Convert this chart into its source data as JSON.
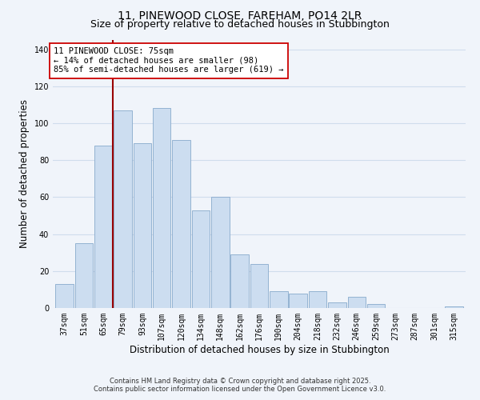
{
  "title": "11, PINEWOOD CLOSE, FAREHAM, PO14 2LR",
  "subtitle": "Size of property relative to detached houses in Stubbington",
  "xlabel": "Distribution of detached houses by size in Stubbington",
  "ylabel": "Number of detached properties",
  "categories": [
    "37sqm",
    "51sqm",
    "65sqm",
    "79sqm",
    "93sqm",
    "107sqm",
    "120sqm",
    "134sqm",
    "148sqm",
    "162sqm",
    "176sqm",
    "190sqm",
    "204sqm",
    "218sqm",
    "232sqm",
    "246sqm",
    "259sqm",
    "273sqm",
    "287sqm",
    "301sqm",
    "315sqm"
  ],
  "values": [
    13,
    35,
    88,
    107,
    89,
    108,
    91,
    53,
    60,
    29,
    24,
    9,
    8,
    9,
    3,
    6,
    2,
    0,
    0,
    0,
    1
  ],
  "bar_color": "#ccddf0",
  "bar_edge_color": "#88aacc",
  "grid_color": "#d0dded",
  "vline_color": "#990000",
  "vline_x_index": 2.5,
  "annotation_text": "11 PINEWOOD CLOSE: 75sqm\n← 14% of detached houses are smaller (98)\n85% of semi-detached houses are larger (619) →",
  "annotation_box_facecolor": "#ffffff",
  "annotation_box_edgecolor": "#cc0000",
  "ylim": [
    0,
    145
  ],
  "yticks": [
    0,
    20,
    40,
    60,
    80,
    100,
    120,
    140
  ],
  "footer_line1": "Contains HM Land Registry data © Crown copyright and database right 2025.",
  "footer_line2": "Contains public sector information licensed under the Open Government Licence v3.0.",
  "title_fontsize": 10,
  "subtitle_fontsize": 9,
  "axis_label_fontsize": 8.5,
  "tick_fontsize": 7,
  "annotation_fontsize": 7.5,
  "footer_fontsize": 6,
  "bg_color": "#f0f4fa"
}
